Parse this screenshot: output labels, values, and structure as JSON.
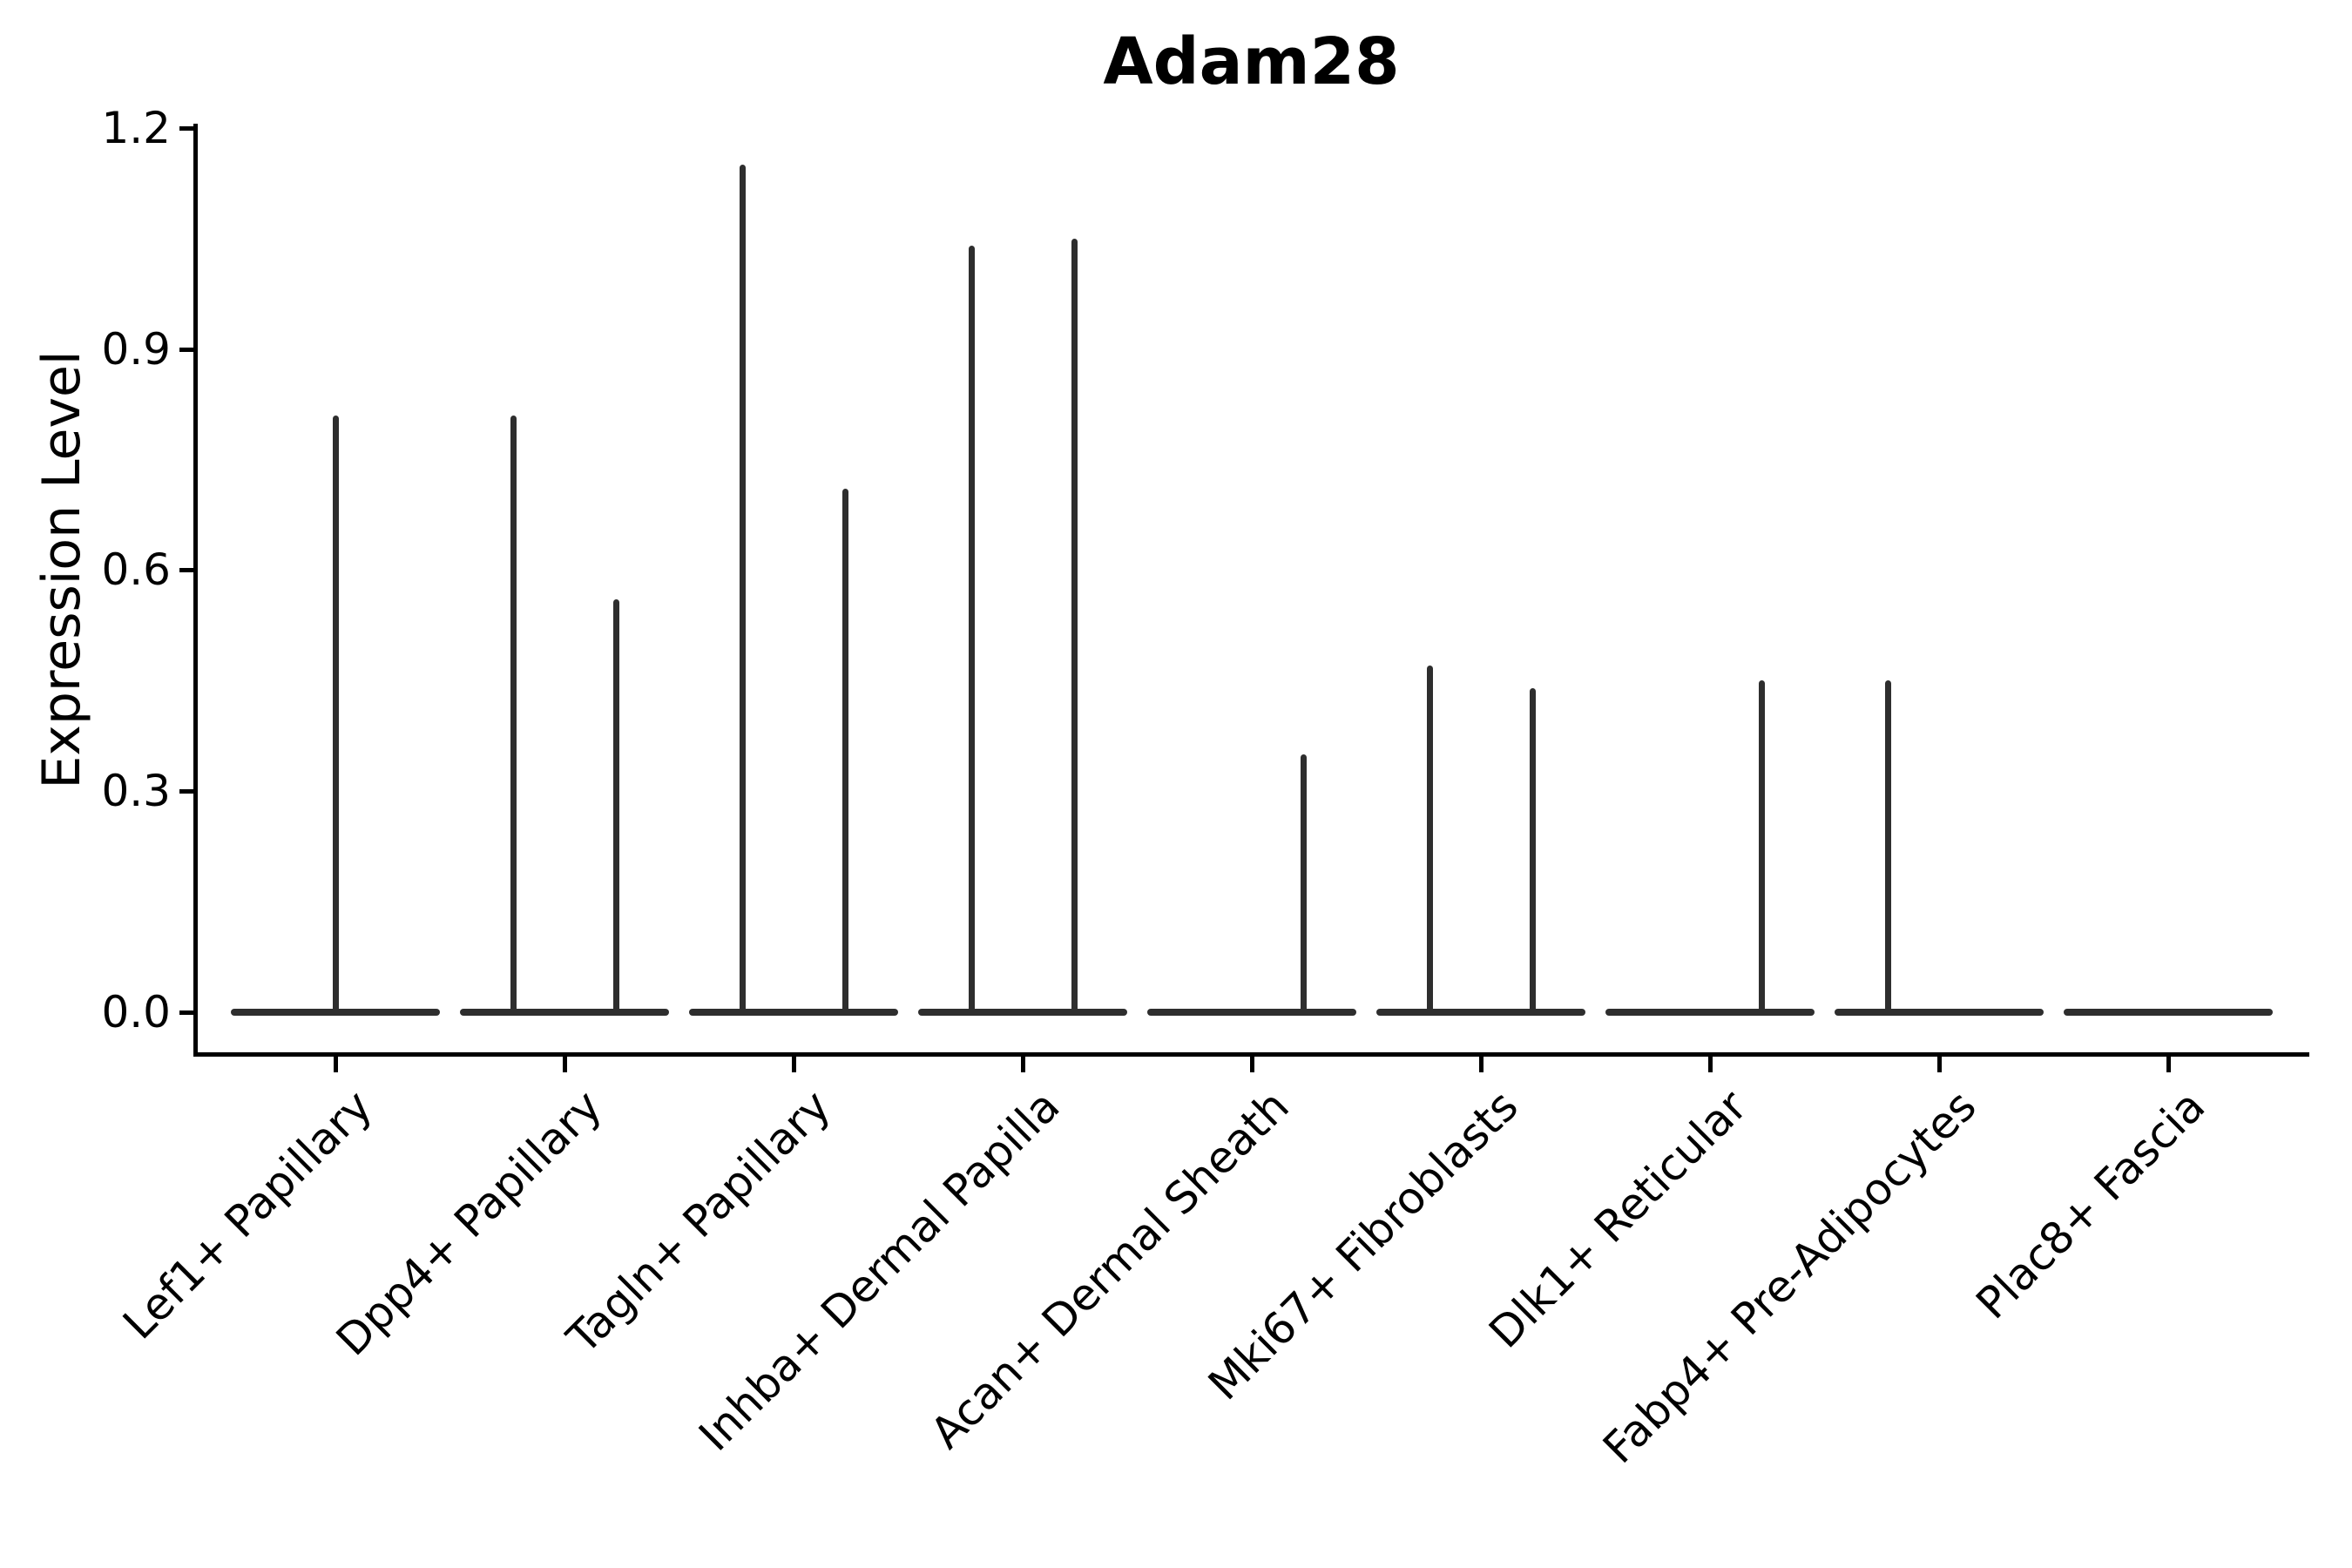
{
  "title": "Adam28",
  "y_axis_label": "Expression Level",
  "chart_data": {
    "type": "violin",
    "title": "Adam28",
    "xlabel": "",
    "ylabel": "Expression Level",
    "ylim": [
      0.0,
      1.2
    ],
    "yticks": [
      {
        "value": 0.0,
        "label": "0.0"
      },
      {
        "value": 0.3,
        "label": "0.3"
      },
      {
        "value": 0.6,
        "label": "0.6"
      },
      {
        "value": 0.9,
        "label": "0.9"
      },
      {
        "value": 1.2,
        "label": "1.2"
      }
    ],
    "categories": [
      "Lef1+ Papillary",
      "Dpp4+ Papillary",
      "Tagln+ Papillary",
      "Inhba+ Dermal Papilla",
      "Acan+ Dermal Sheath",
      "Mki67+ Fibroblasts",
      "Dlk1+ Reticular",
      "Fabp4+ Pre-Adipocytes",
      "Plac8+ Fascia"
    ],
    "series": [
      {
        "category": "Lef1+ Papillary",
        "violins": [
          {
            "pos": "full",
            "max": 0.81
          }
        ]
      },
      {
        "category": "Dpp4+ Papillary",
        "violins": [
          {
            "pos": "left",
            "max": 0.81
          },
          {
            "pos": "right",
            "max": 0.56
          }
        ]
      },
      {
        "category": "Tagln+ Papillary",
        "violins": [
          {
            "pos": "left",
            "max": 1.15
          },
          {
            "pos": "right",
            "max": 0.71
          }
        ]
      },
      {
        "category": "Inhba+ Dermal Papilla",
        "violins": [
          {
            "pos": "left",
            "max": 1.04
          },
          {
            "pos": "right",
            "max": 1.05
          }
        ]
      },
      {
        "category": "Acan+ Dermal Sheath",
        "violins": [
          {
            "pos": "left",
            "max": 0.0
          },
          {
            "pos": "right",
            "max": 0.35
          }
        ]
      },
      {
        "category": "Mki67+ Fibroblasts",
        "violins": [
          {
            "pos": "left",
            "max": 0.47
          },
          {
            "pos": "right",
            "max": 0.44
          }
        ]
      },
      {
        "category": "Dlk1+ Reticular",
        "violins": [
          {
            "pos": "left",
            "max": 0.0
          },
          {
            "pos": "right",
            "max": 0.45
          }
        ]
      },
      {
        "category": "Fabp4+ Pre-Adipocytes",
        "violins": [
          {
            "pos": "left",
            "max": 0.45
          },
          {
            "pos": "right",
            "max": 0.0
          }
        ]
      },
      {
        "category": "Plac8+ Fascia",
        "violins": [
          {
            "pos": "full",
            "max": 0.0
          }
        ]
      }
    ],
    "legend": "none",
    "grid": false,
    "baseline_value": 0.0,
    "colors": {
      "violin": "#2e2e2e",
      "axis": "#000000",
      "text": "#000000",
      "background": "#ffffff"
    }
  }
}
